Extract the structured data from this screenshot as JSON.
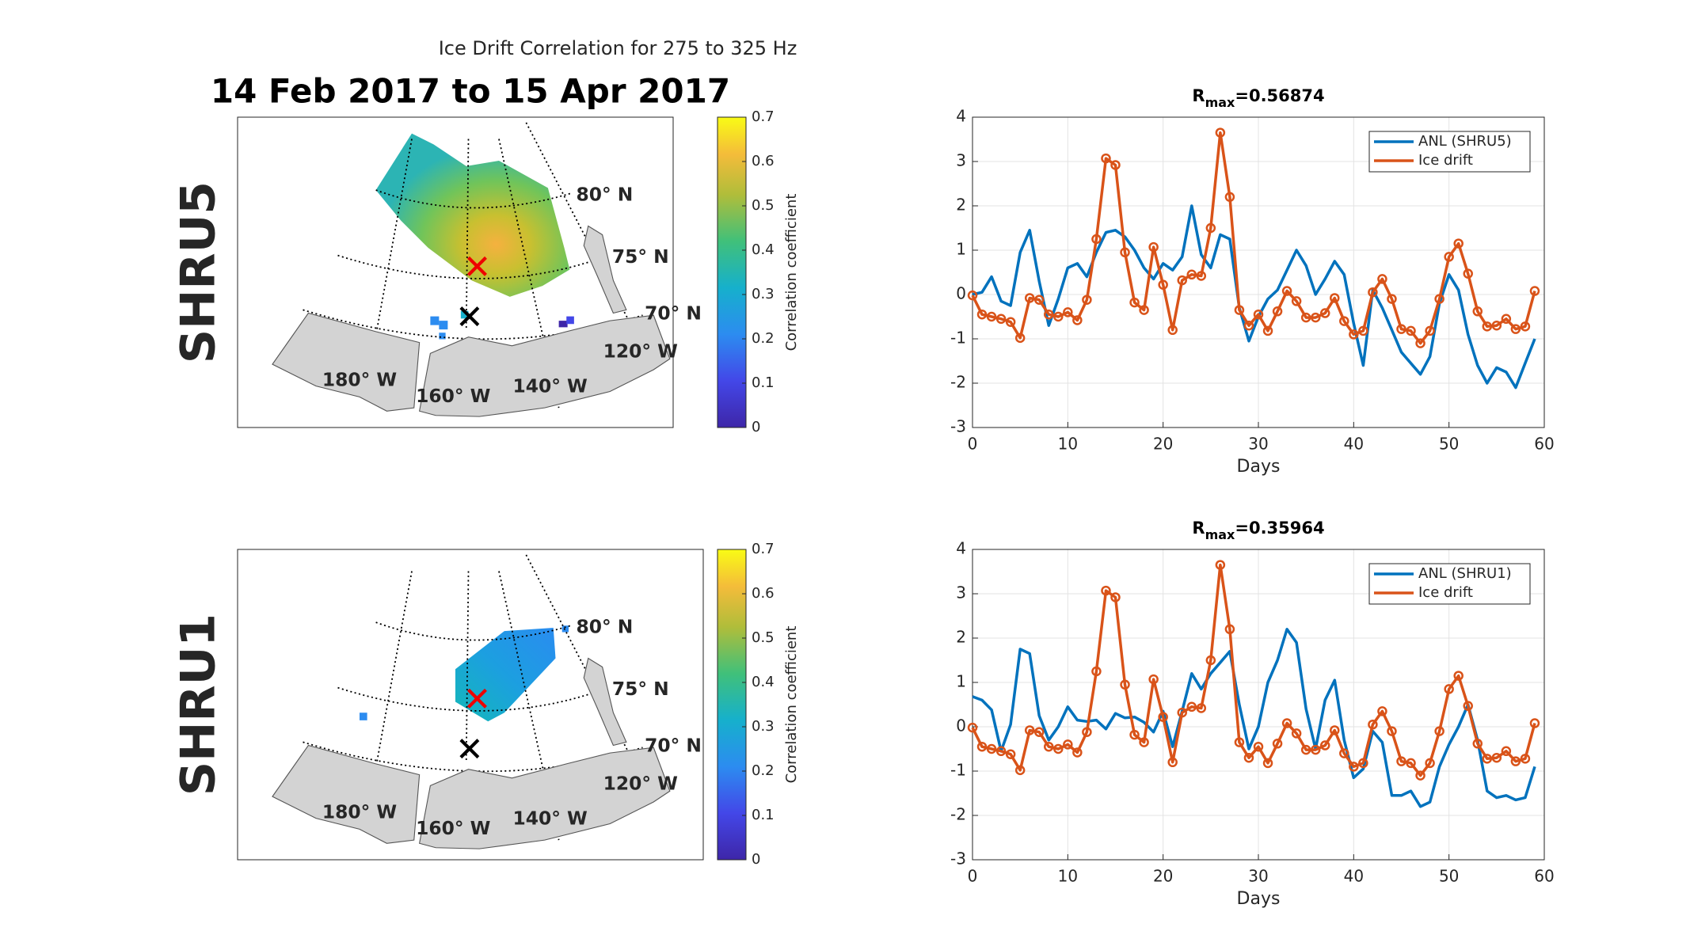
{
  "title": "Ice Drift Correlation for 275 to 325 Hz",
  "date_range": "14 Feb 2017 to 15 Apr 2017",
  "maps": [
    {
      "label": "SHRU5",
      "lat_labels": [
        "80° N",
        "75° N",
        "70° N"
      ],
      "lon_labels": [
        "180° W",
        "160° W",
        "140° W",
        "120° W"
      ],
      "colorbar": {
        "label": "Correlation coefficient",
        "lim": [
          0,
          0.7
        ],
        "ticks": [
          0,
          0.1,
          0.2,
          0.3,
          0.4,
          0.5,
          0.6,
          0.7
        ]
      }
    },
    {
      "label": "SHRU1",
      "lat_labels": [
        "80° N",
        "75° N",
        "70° N"
      ],
      "lon_labels": [
        "180° W",
        "160° W",
        "140° W",
        "120° W"
      ],
      "colorbar": {
        "label": "Correlation coefficient",
        "lim": [
          0,
          0.7
        ],
        "ticks": [
          0,
          0.1,
          0.2,
          0.3,
          0.4,
          0.5,
          0.6,
          0.7
        ]
      }
    }
  ],
  "chart_data": [
    {
      "type": "line",
      "title_parts": [
        "R",
        "max",
        "=0.56874"
      ],
      "xlabel": "Days",
      "x": [
        0,
        1,
        2,
        3,
        4,
        5,
        6,
        7,
        8,
        9,
        10,
        11,
        12,
        13,
        14,
        15,
        16,
        17,
        18,
        19,
        20,
        21,
        22,
        23,
        24,
        25,
        26,
        27,
        28,
        29,
        30,
        31,
        32,
        33,
        34,
        35,
        36,
        37,
        38,
        39,
        40,
        41,
        42,
        43,
        44,
        45,
        46,
        47,
        48,
        49,
        50,
        51,
        52,
        53,
        54,
        55,
        56,
        57,
        58,
        59
      ],
      "xlim": [
        0,
        60
      ],
      "xticks": [
        0,
        10,
        20,
        30,
        40,
        50,
        60
      ],
      "ylim": [
        -3,
        4
      ],
      "yticks": [
        -3,
        -2,
        -1,
        0,
        1,
        2,
        3,
        4
      ],
      "grid": true,
      "legend": "upper right",
      "series": [
        {
          "name": "ANL (SHRU5)",
          "color": "#0072bd",
          "values": [
            0.0,
            0.05,
            0.4,
            -0.15,
            -0.25,
            0.95,
            1.45,
            0.3,
            -0.7,
            -0.1,
            0.6,
            0.7,
            0.4,
            0.95,
            1.4,
            1.45,
            1.3,
            1.0,
            0.6,
            0.35,
            0.7,
            0.55,
            0.85,
            2.0,
            0.9,
            0.6,
            1.35,
            1.25,
            -0.3,
            -1.05,
            -0.5,
            -0.1,
            0.1,
            0.55,
            1.0,
            0.65,
            0.0,
            0.35,
            0.75,
            0.45,
            -0.65,
            -1.6,
            0.1,
            -0.3,
            -0.8,
            -1.3,
            -1.55,
            -1.8,
            -1.4,
            -0.2,
            0.45,
            0.1,
            -0.9,
            -1.6,
            -2.0,
            -1.65,
            -1.75,
            -2.1,
            -1.55,
            -1.0
          ]
        },
        {
          "name": "Ice drift",
          "color": "#d95319",
          "marker": "o",
          "values": [
            -0.02,
            -0.45,
            -0.5,
            -0.55,
            -0.62,
            -0.98,
            -0.08,
            -0.12,
            -0.45,
            -0.5,
            -0.4,
            -0.58,
            -0.12,
            1.25,
            3.07,
            2.92,
            0.95,
            -0.18,
            -0.35,
            1.07,
            0.22,
            -0.8,
            0.32,
            0.45,
            0.42,
            1.5,
            3.65,
            2.2,
            -0.35,
            -0.7,
            -0.45,
            -0.82,
            -0.38,
            0.08,
            -0.15,
            -0.52,
            -0.52,
            -0.42,
            -0.08,
            -0.6,
            -0.9,
            -0.82,
            0.05,
            0.35,
            -0.1,
            -0.78,
            -0.82,
            -1.1,
            -0.82,
            -0.1,
            0.85,
            1.15,
            0.47,
            -0.38,
            -0.72,
            -0.7,
            -0.55,
            -0.78,
            -0.72,
            0.08
          ]
        }
      ]
    },
    {
      "type": "line",
      "title_parts": [
        "R",
        "max",
        "=0.35964"
      ],
      "xlabel": "Days",
      "x": [
        0,
        1,
        2,
        3,
        4,
        5,
        6,
        7,
        8,
        9,
        10,
        11,
        12,
        13,
        14,
        15,
        16,
        17,
        18,
        19,
        20,
        21,
        22,
        23,
        24,
        25,
        26,
        27,
        28,
        29,
        30,
        31,
        32,
        33,
        34,
        35,
        36,
        37,
        38,
        39,
        40,
        41,
        42,
        43,
        44,
        45,
        46,
        47,
        48,
        49,
        50,
        51,
        52,
        53,
        54,
        55,
        56,
        57,
        58,
        59
      ],
      "xlim": [
        0,
        60
      ],
      "xticks": [
        0,
        10,
        20,
        30,
        40,
        50,
        60
      ],
      "ylim": [
        -3,
        4
      ],
      "yticks": [
        -3,
        -2,
        -1,
        0,
        1,
        2,
        3,
        4
      ],
      "grid": true,
      "legend": "upper right",
      "series": [
        {
          "name": "ANL (SHRU1)",
          "color": "#0072bd",
          "values": [
            0.68,
            0.6,
            0.38,
            -0.55,
            0.05,
            1.75,
            1.65,
            0.25,
            -0.3,
            0.0,
            0.45,
            0.15,
            0.12,
            0.15,
            -0.05,
            0.3,
            0.2,
            0.22,
            0.1,
            -0.12,
            0.35,
            -0.45,
            0.35,
            1.2,
            0.85,
            1.2,
            1.45,
            1.7,
            0.5,
            -0.5,
            0.0,
            1.0,
            1.5,
            2.2,
            1.9,
            0.4,
            -0.5,
            0.6,
            1.05,
            -0.3,
            -1.15,
            -0.95,
            -0.1,
            -0.35,
            -1.55,
            -1.55,
            -1.45,
            -1.8,
            -1.7,
            -0.9,
            -0.4,
            0.0,
            0.5,
            -0.3,
            -1.45,
            -1.6,
            -1.55,
            -1.65,
            -1.6,
            -0.9
          ]
        },
        {
          "name": "Ice drift",
          "color": "#d95319",
          "marker": "o",
          "values": [
            -0.02,
            -0.45,
            -0.5,
            -0.55,
            -0.62,
            -0.98,
            -0.08,
            -0.12,
            -0.45,
            -0.5,
            -0.4,
            -0.58,
            -0.12,
            1.25,
            3.07,
            2.92,
            0.95,
            -0.18,
            -0.35,
            1.07,
            0.22,
            -0.8,
            0.32,
            0.45,
            0.42,
            1.5,
            3.65,
            2.2,
            -0.35,
            -0.7,
            -0.45,
            -0.82,
            -0.38,
            0.08,
            -0.15,
            -0.52,
            -0.52,
            -0.42,
            -0.08,
            -0.6,
            -0.9,
            -0.82,
            0.05,
            0.35,
            -0.1,
            -0.78,
            -0.82,
            -1.1,
            -0.82,
            -0.1,
            0.85,
            1.15,
            0.47,
            -0.38,
            -0.72,
            -0.7,
            -0.55,
            -0.78,
            -0.72,
            0.08
          ]
        }
      ]
    }
  ]
}
